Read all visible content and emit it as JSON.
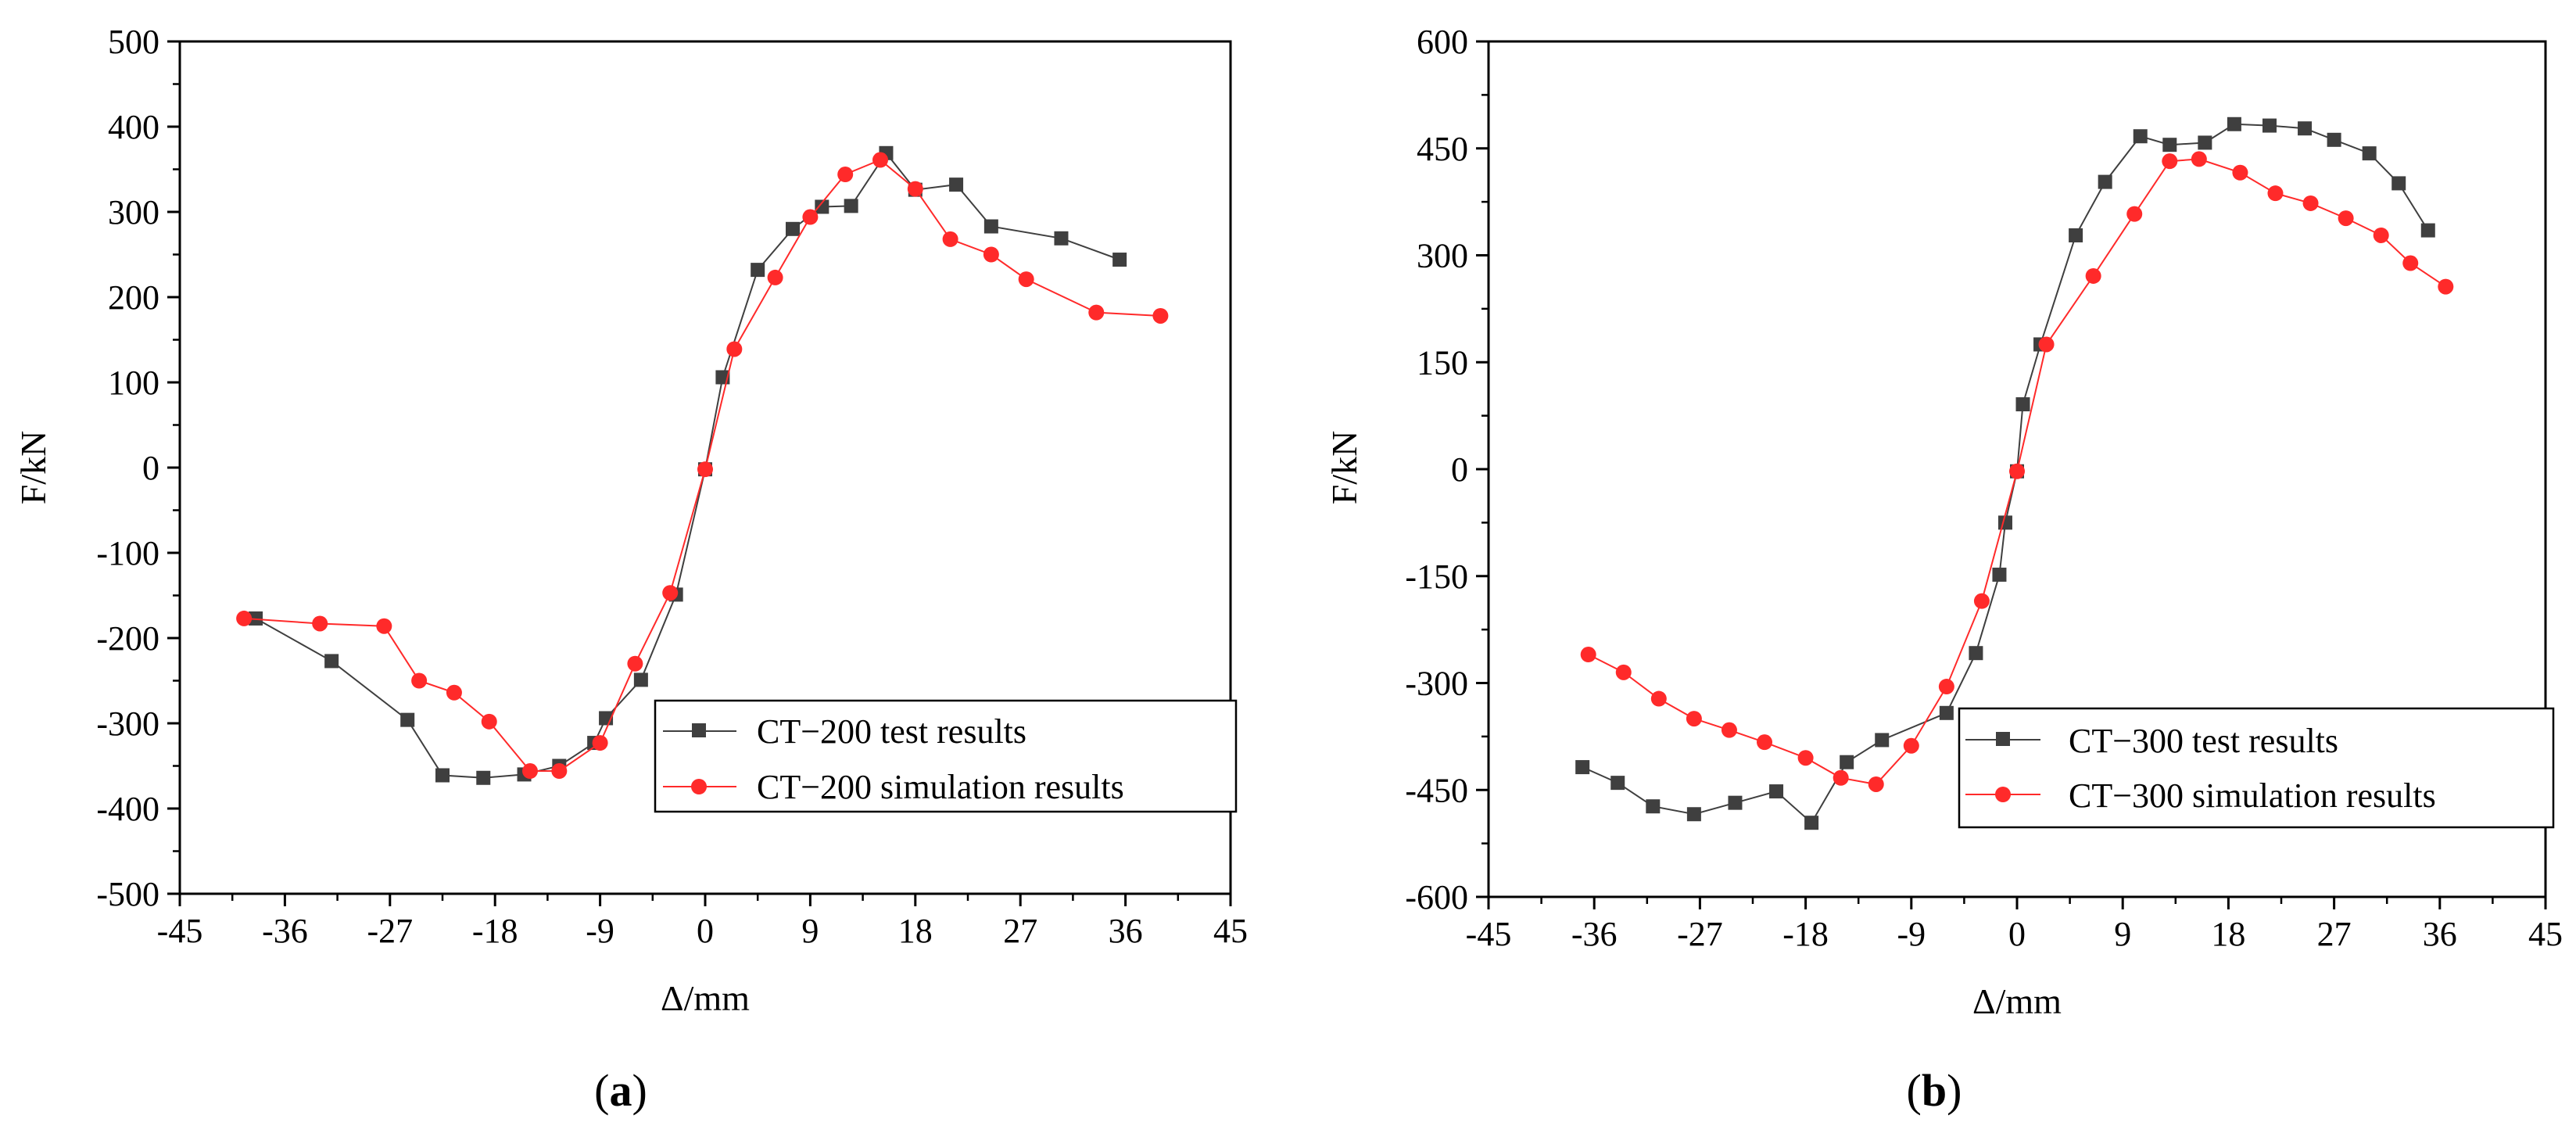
{
  "chart_data": [
    {
      "type": "line",
      "panel_label": "a",
      "xlabel": "Δ/mm",
      "ylabel": "F/kN",
      "xlim": [
        -45,
        45
      ],
      "ylim": [
        -500,
        500
      ],
      "xticks": [
        -45,
        -36,
        -27,
        -18,
        -9,
        0,
        9,
        18,
        27,
        36,
        45
      ],
      "yticks": [
        -500,
        -400,
        -300,
        -200,
        -100,
        0,
        100,
        200,
        300,
        400,
        500
      ],
      "grid": false,
      "legend_position": "bottom-right",
      "series": [
        {
          "name": "CT−200 test results",
          "marker": "square",
          "color": "#3f3f3f",
          "points": [
            [
              -38.5,
              -177
            ],
            [
              -32,
              -227
            ],
            [
              -25.5,
              -296
            ],
            [
              -22.5,
              -361
            ],
            [
              -19,
              -364
            ],
            [
              -15.5,
              -360
            ],
            [
              -12.5,
              -350
            ],
            [
              -9.5,
              -323
            ],
            [
              -8.5,
              -294
            ],
            [
              -5.5,
              -249
            ],
            [
              -2.5,
              -149
            ],
            [
              0,
              -2
            ],
            [
              1.5,
              106
            ],
            [
              4.5,
              232
            ],
            [
              7.5,
              280
            ],
            [
              10,
              306
            ],
            [
              12.5,
              307
            ],
            [
              15.5,
              369
            ],
            [
              18,
              326
            ],
            [
              21.5,
              332
            ],
            [
              24.5,
              283
            ],
            [
              30.5,
              269
            ],
            [
              35.5,
              244
            ]
          ]
        },
        {
          "name": "CT−200 simulation results",
          "marker": "circle",
          "color": "#ff2a2a",
          "points": [
            [
              -39.5,
              -177
            ],
            [
              -33,
              -183
            ],
            [
              -27.5,
              -186
            ],
            [
              -24.5,
              -250
            ],
            [
              -21.5,
              -264
            ],
            [
              -18.5,
              -298
            ],
            [
              -15,
              -356
            ],
            [
              -12.5,
              -356
            ],
            [
              -9,
              -323
            ],
            [
              -6,
              -230
            ],
            [
              -3,
              -147
            ],
            [
              0,
              -2
            ],
            [
              2.5,
              139
            ],
            [
              6,
              223
            ],
            [
              9,
              294
            ],
            [
              12,
              344
            ],
            [
              15,
              361
            ],
            [
              18,
              327
            ],
            [
              21,
              268
            ],
            [
              24.5,
              250
            ],
            [
              27.5,
              221
            ],
            [
              33.5,
              182
            ],
            [
              39,
              178
            ]
          ]
        }
      ]
    },
    {
      "type": "line",
      "panel_label": "b",
      "xlabel": "Δ/mm",
      "ylabel": "F/kN",
      "xlim": [
        -45,
        45
      ],
      "ylim": [
        -600,
        600
      ],
      "xticks": [
        -45,
        -36,
        -27,
        -18,
        -9,
        0,
        9,
        18,
        27,
        36,
        45
      ],
      "yticks": [
        -600,
        -450,
        -300,
        -150,
        0,
        150,
        300,
        450,
        600
      ],
      "grid": false,
      "legend_position": "bottom-right",
      "series": [
        {
          "name": "CT−300 test results",
          "marker": "square",
          "color": "#3f3f3f",
          "points": [
            [
              -37,
              -418
            ],
            [
              -34,
              -440
            ],
            [
              -31,
              -473
            ],
            [
              -27.5,
              -484
            ],
            [
              -24,
              -468
            ],
            [
              -20.5,
              -452
            ],
            [
              -17.5,
              -496
            ],
            [
              -14.5,
              -411
            ],
            [
              -11.5,
              -380
            ],
            [
              -6,
              -342
            ],
            [
              -3.5,
              -258
            ],
            [
              -1.5,
              -148
            ],
            [
              -1,
              -75
            ],
            [
              0,
              -3
            ],
            [
              0.5,
              91
            ],
            [
              2,
              175
            ],
            [
              5,
              328
            ],
            [
              7.5,
              403
            ],
            [
              10.5,
              467
            ],
            [
              13,
              455
            ],
            [
              16,
              458
            ],
            [
              18.5,
              484
            ],
            [
              21.5,
              482
            ],
            [
              24.5,
              478
            ],
            [
              27,
              462
            ],
            [
              30,
              443
            ],
            [
              32.5,
              401
            ],
            [
              35,
              335
            ]
          ]
        },
        {
          "name": "CT−300 simulation results",
          "marker": "circle",
          "color": "#ff2a2a",
          "points": [
            [
              -36.5,
              -260
            ],
            [
              -33.5,
              -285
            ],
            [
              -30.5,
              -322
            ],
            [
              -27.5,
              -350
            ],
            [
              -24.5,
              -366
            ],
            [
              -21.5,
              -383
            ],
            [
              -18,
              -405
            ],
            [
              -15,
              -433
            ],
            [
              -12,
              -442
            ],
            [
              -9,
              -388
            ],
            [
              -6,
              -305
            ],
            [
              -3,
              -185
            ],
            [
              0,
              -3
            ],
            [
              2.5,
              175
            ],
            [
              6.5,
              271
            ],
            [
              10,
              358
            ],
            [
              13,
              432
            ],
            [
              15.5,
              435
            ],
            [
              19,
              416
            ],
            [
              22,
              387
            ],
            [
              25,
              373
            ],
            [
              28,
              352
            ],
            [
              31,
              328
            ],
            [
              33.5,
              289
            ],
            [
              36.5,
              256
            ]
          ]
        }
      ]
    }
  ]
}
